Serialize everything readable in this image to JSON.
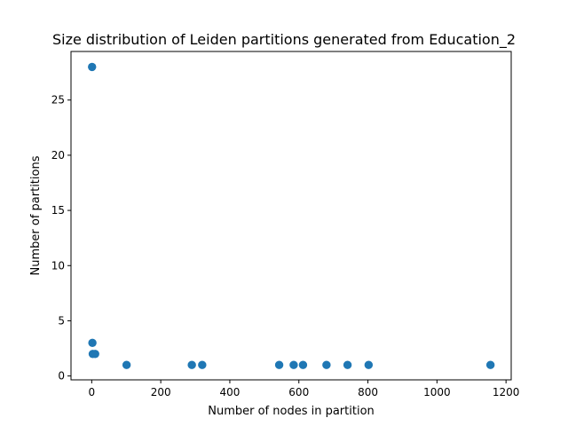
{
  "chart_data": {
    "type": "scatter",
    "title": "Size distribution of Leiden partitions generated from Education_2",
    "xlabel": "Number of nodes in partition",
    "ylabel": "Number of partitions",
    "xlim": [
      -60,
      1215
    ],
    "ylim": [
      -0.35,
      29.4
    ],
    "xticks": [
      0,
      200,
      400,
      600,
      800,
      1000,
      1200
    ],
    "xtick_labels": [
      "0",
      "200",
      "400",
      "600",
      "800",
      "1000",
      "1200"
    ],
    "yticks": [
      0,
      5,
      10,
      15,
      20,
      25
    ],
    "ytick_labels": [
      "0",
      "5",
      "10",
      "15",
      "20",
      "25"
    ],
    "grid": false,
    "marker_color": "#1f77b4",
    "points": [
      {
        "x": 1,
        "y": 28
      },
      {
        "x": 2,
        "y": 3
      },
      {
        "x": 3,
        "y": 2
      },
      {
        "x": 10,
        "y": 2
      },
      {
        "x": 101,
        "y": 1
      },
      {
        "x": 290,
        "y": 1
      },
      {
        "x": 320,
        "y": 1
      },
      {
        "x": 543,
        "y": 1
      },
      {
        "x": 585,
        "y": 1
      },
      {
        "x": 612,
        "y": 1
      },
      {
        "x": 680,
        "y": 1
      },
      {
        "x": 741,
        "y": 1
      },
      {
        "x": 802,
        "y": 1
      },
      {
        "x": 1155,
        "y": 1
      }
    ]
  }
}
